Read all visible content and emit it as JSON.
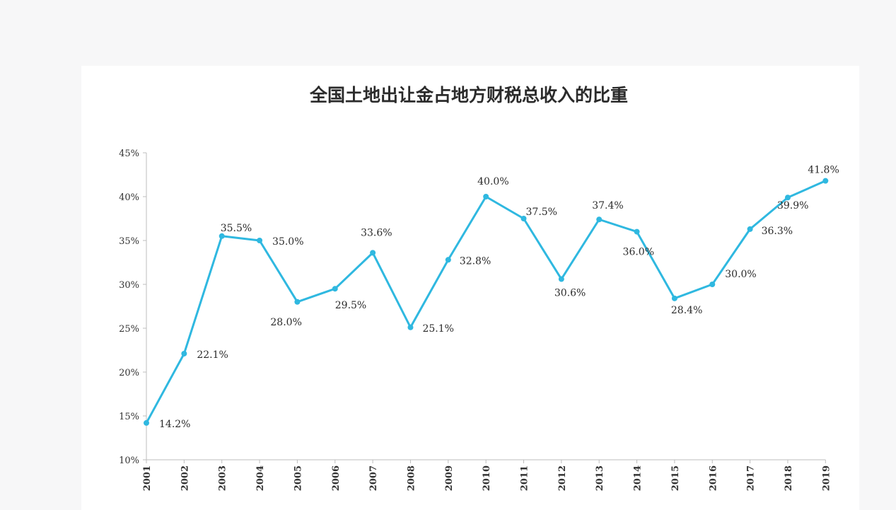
{
  "chart_data": {
    "type": "line",
    "title": "全国土地出让金占地方财税总收入的比重",
    "xlabel": "",
    "ylabel": "",
    "ylim": [
      10,
      45
    ],
    "y_ticks": [
      "10%",
      "15%",
      "20%",
      "25%",
      "30%",
      "35%",
      "40%",
      "45%"
    ],
    "grid": false,
    "legend": "none",
    "line_color": "#2fb8e0",
    "categories": [
      "2001",
      "2002",
      "2003",
      "2004",
      "2005",
      "2006",
      "2007",
      "2008",
      "2009",
      "2010",
      "2011",
      "2012",
      "2013",
      "2014",
      "2015",
      "2016",
      "2017",
      "2018",
      "2019"
    ],
    "values": [
      14.2,
      22.1,
      35.5,
      35.0,
      28.0,
      29.5,
      33.6,
      25.1,
      32.8,
      40.0,
      37.5,
      30.6,
      37.4,
      36.0,
      28.4,
      30.0,
      36.3,
      39.9,
      41.8
    ],
    "data_labels": [
      "14.2%",
      "22.1%",
      "35.5%",
      "35.0%",
      "28.0%",
      "29.5%",
      "33.6%",
      "25.1%",
      "32.8%",
      "40.0%",
      "37.5%",
      "30.6%",
      "37.4%",
      "36.0%",
      "28.4%",
      "30.0%",
      "36.3%",
      "39.9%",
      "41.8%"
    ]
  }
}
